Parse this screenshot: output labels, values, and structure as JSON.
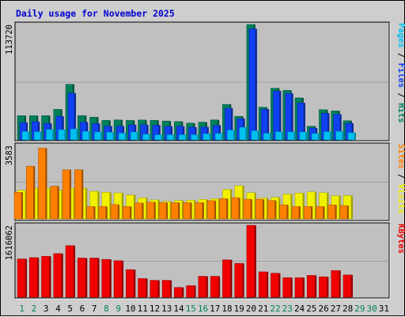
{
  "chart_data": {
    "type": "bar",
    "title": "Daily usage for November 2025",
    "days": [
      "1",
      "2",
      "3",
      "4",
      "5",
      "6",
      "7",
      "8",
      "9",
      "10",
      "11",
      "12",
      "13",
      "14",
      "15",
      "16",
      "17",
      "18",
      "19",
      "20",
      "21",
      "22",
      "23",
      "24",
      "25",
      "26",
      "27",
      "28",
      "29",
      "30",
      "31"
    ],
    "weekend_days": [
      "1",
      "2",
      "8",
      "9",
      "15",
      "16",
      "22",
      "23",
      "29",
      "30"
    ],
    "panels": [
      {
        "id": "hits",
        "max_label": "113720",
        "ymax": 113720,
        "legend": [
          {
            "text": "Pages",
            "color": "#00c0f0"
          },
          {
            "text": " / ",
            "color": "#000000"
          },
          {
            "text": "Files",
            "color": "#1040f0"
          },
          {
            "text": " / ",
            "color": "#000000"
          },
          {
            "text": "Hits",
            "color": "#00805c"
          }
        ],
        "series": [
          {
            "name": "Hits",
            "color": "#00805c",
            "values": [
              23900,
              23900,
              23900,
              30200,
              54800,
              24000,
              22400,
              19300,
              19700,
              19300,
              19600,
              19300,
              18600,
              18100,
              16600,
              17500,
              19700,
              35000,
              23300,
              113720,
              32200,
              50900,
              48900,
              41400,
              13500,
              29800,
              28600,
              18900,
              null,
              null,
              null
            ]
          },
          {
            "name": "Files",
            "color": "#1040f0",
            "values": [
              17100,
              18000,
              16300,
              23300,
              46200,
              17500,
              16200,
              13500,
              13700,
              14900,
              14900,
              14500,
              13400,
              13500,
              12600,
              12800,
              14400,
              31200,
              21000,
              109500,
              30300,
              48200,
              45900,
              36500,
              11700,
              26400,
              25300,
              16400,
              null,
              null,
              null
            ]
          },
          {
            "name": "Pages",
            "color": "#00c0f0",
            "values": [
              8300,
              8100,
              10200,
              10000,
              10800,
              8400,
              7900,
              7600,
              6700,
              7800,
              5600,
              5100,
              5100,
              5100,
              5100,
              6000,
              6400,
              9700,
              12400,
              9000,
              6600,
              8100,
              7900,
              7900,
              6300,
              8100,
              8500,
              7100,
              null,
              null,
              null
            ]
          }
        ]
      },
      {
        "id": "visits",
        "max_label": "3583",
        "ymax": 3583,
        "legend": [
          {
            "text": "Sites",
            "color": "#ff8000"
          },
          {
            "text": " / ",
            "color": "#000000"
          },
          {
            "text": "Visits",
            "color": "#f0f000"
          }
        ],
        "series": [
          {
            "name": "Visits",
            "color": "#f0f000",
            "values": [
              1400,
              1500,
              1500,
              1400,
              1500,
              1500,
              1350,
              1300,
              1270,
              1170,
              1030,
              930,
              860,
              900,
              910,
              950,
              980,
              1440,
              1620,
              1280,
              1030,
              1050,
              1210,
              1260,
              1320,
              1280,
              1130,
              1140,
              null,
              null,
              null
            ]
          },
          {
            "name": "Sites",
            "color": "#ff8000",
            "values": [
              1300,
              2570,
              3450,
              1600,
              2400,
              2400,
              610,
              610,
              700,
              610,
              780,
              820,
              800,
              800,
              800,
              800,
              890,
              990,
              1040,
              960,
              960,
              900,
              690,
              610,
              610,
              610,
              690,
              650,
              null,
              null,
              null
            ]
          }
        ]
      },
      {
        "id": "kbytes",
        "max_label": "1616062",
        "ymax": 1616062,
        "legend": [
          {
            "text": "KBytes",
            "color": "#f00000"
          }
        ],
        "series": [
          {
            "name": "KBytes",
            "color": "#f00000",
            "values": [
              860000,
              890000,
              920000,
              980000,
              1160000,
              880000,
              880000,
              850000,
              820000,
              620000,
              420000,
              380000,
              380000,
              220000,
              260000,
              470000,
              470000,
              840000,
              760000,
              1616062,
              570000,
              540000,
              440000,
              440000,
              490000,
              460000,
              600000,
              500000,
              null,
              null,
              null
            ]
          }
        ]
      }
    ]
  }
}
